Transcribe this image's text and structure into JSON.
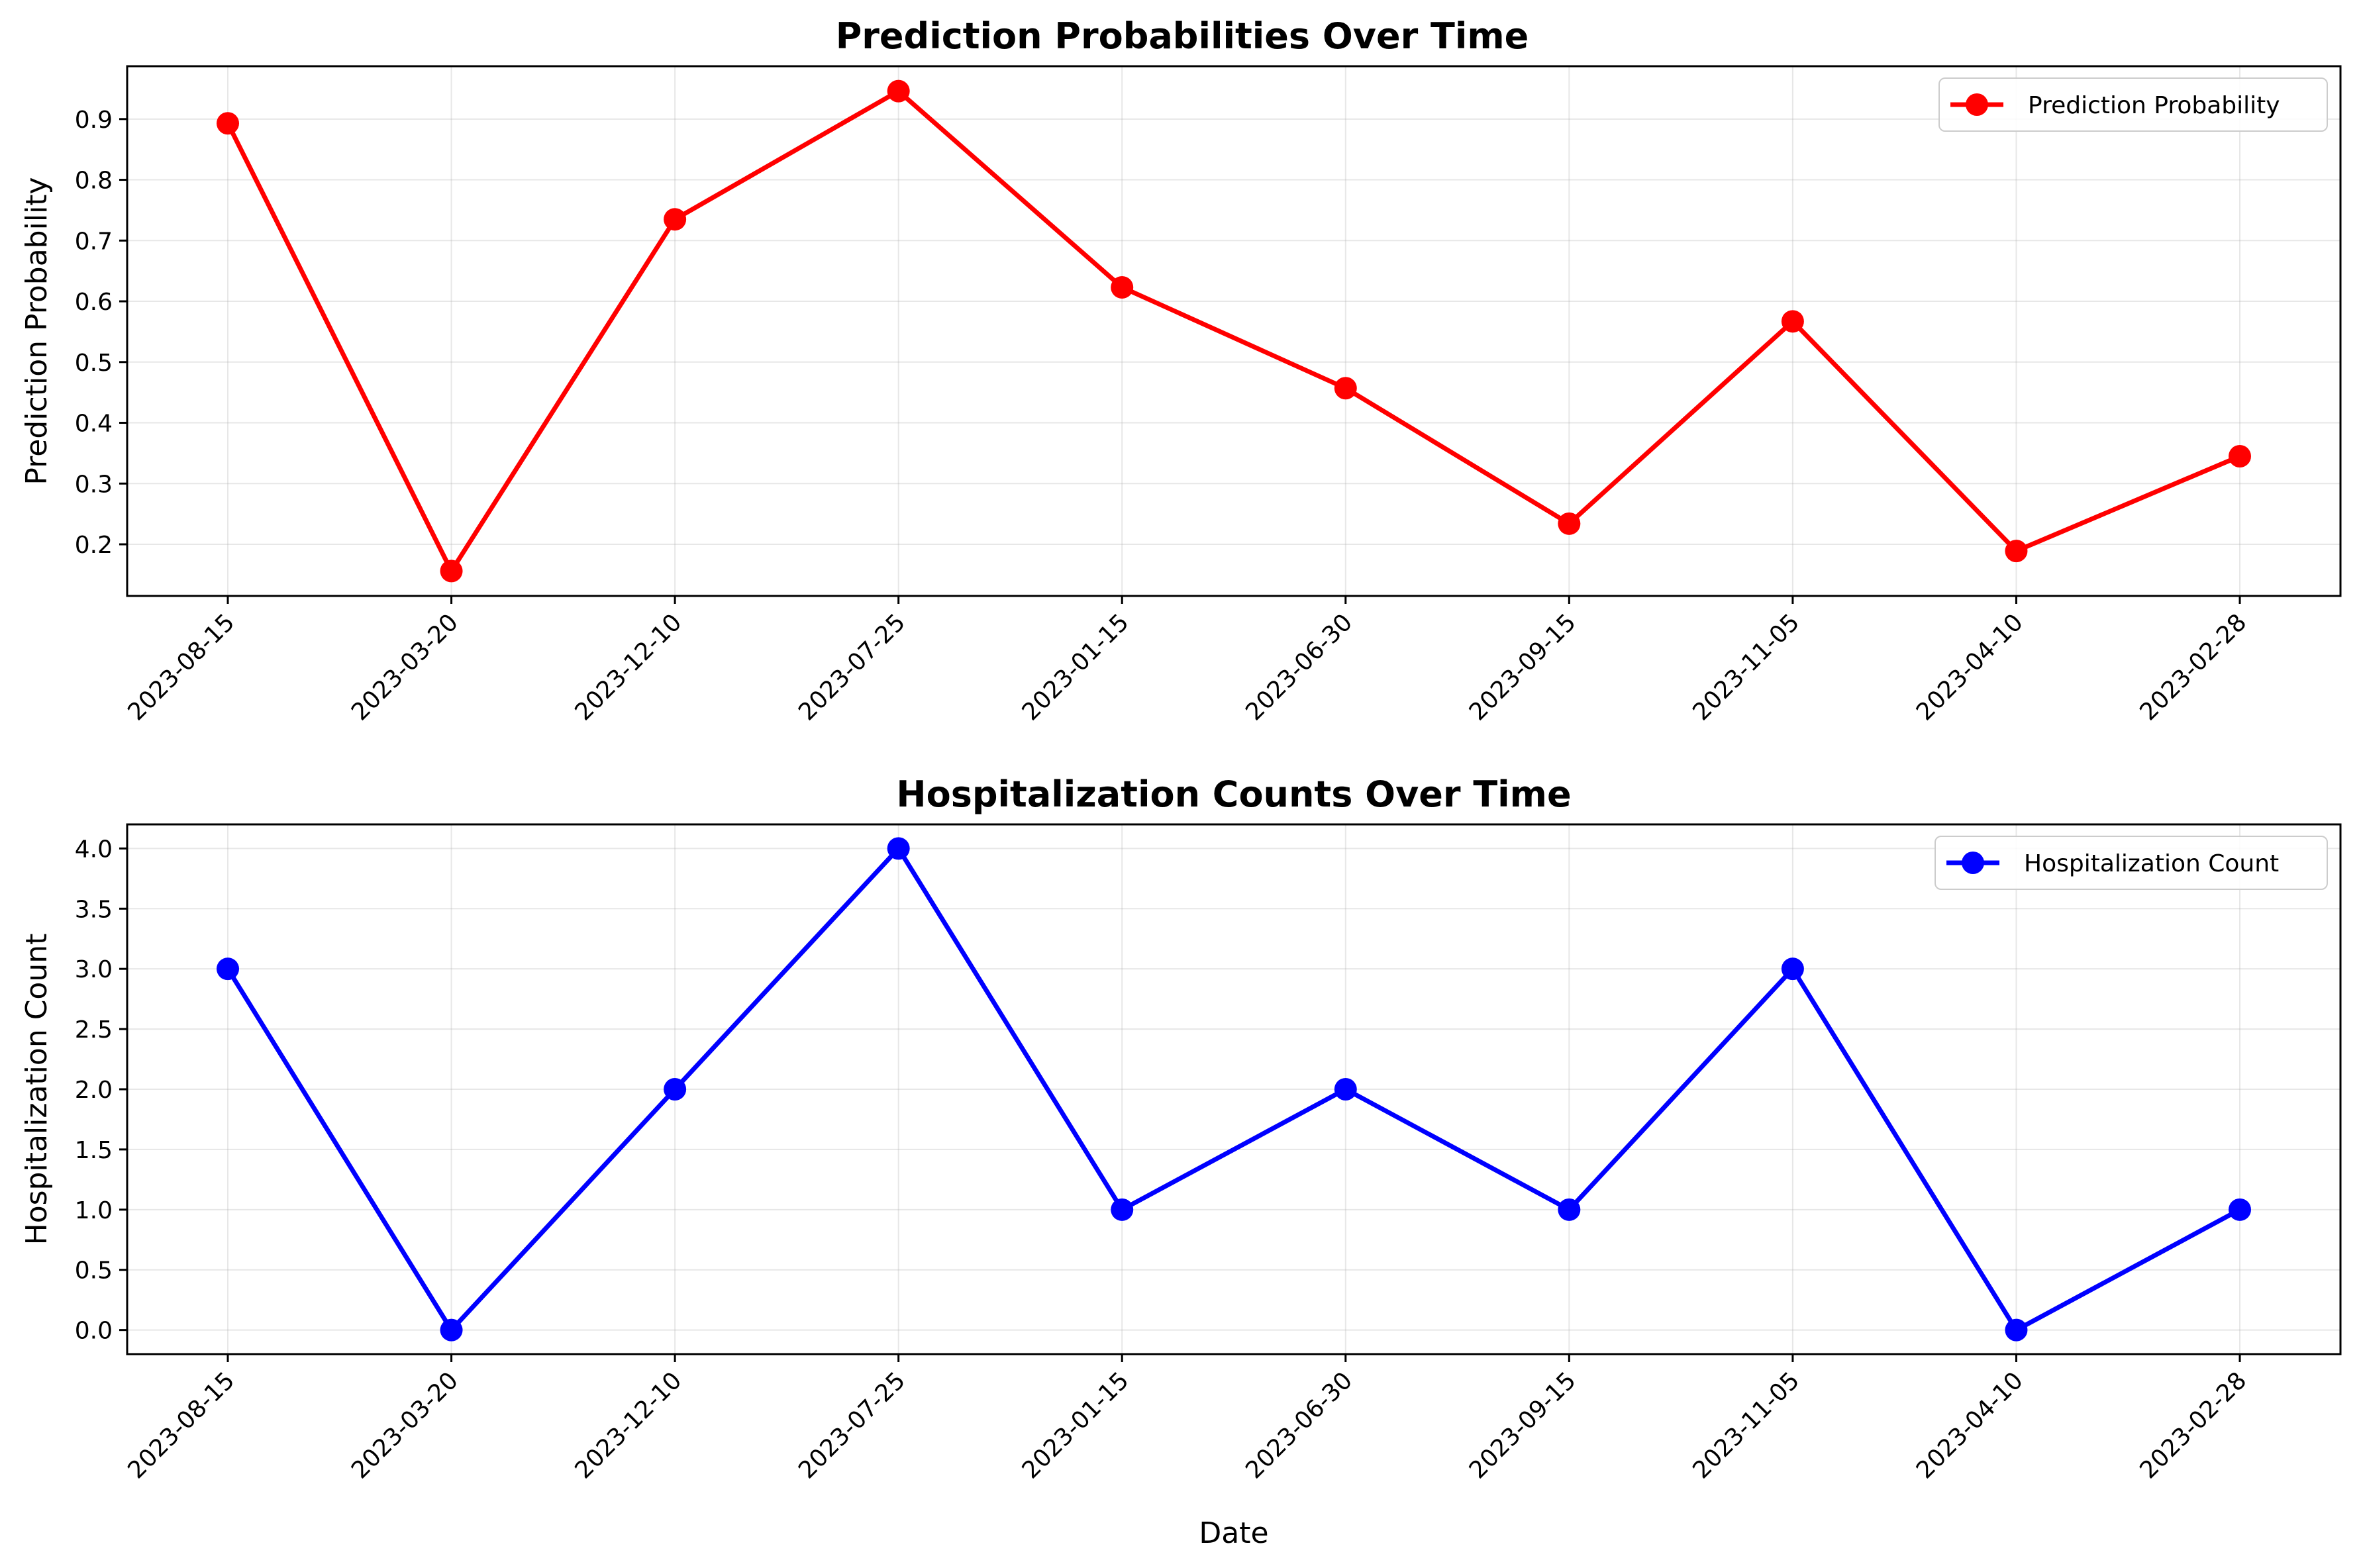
{
  "chart_data": [
    {
      "type": "line",
      "title": "Prediction Probabilities Over Time",
      "xlabel": "",
      "ylabel": "Prediction Probability",
      "categories": [
        "2023-08-15",
        "2023-03-20",
        "2023-12-10",
        "2023-07-25",
        "2023-01-15",
        "2023-06-30",
        "2023-09-15",
        "2023-11-05",
        "2023-04-10",
        "2023-02-28"
      ],
      "series": [
        {
          "name": "Prediction Probability",
          "color": "#ff0000",
          "values": [
            0.893,
            0.156,
            0.735,
            0.946,
            0.623,
            0.457,
            0.234,
            0.567,
            0.189,
            0.345
          ]
        }
      ],
      "ylim": [
        0.115,
        0.987
      ],
      "yticks": [
        0.2,
        0.3,
        0.4,
        0.5,
        0.6,
        0.7,
        0.8,
        0.9
      ],
      "ytick_labels": [
        "0.2",
        "0.3",
        "0.4",
        "0.5",
        "0.6",
        "0.7",
        "0.8",
        "0.9"
      ],
      "grid": true,
      "legend": "top-right"
    },
    {
      "type": "line",
      "title": "Hospitalization Counts Over Time",
      "xlabel": "Date",
      "ylabel": "Hospitalization Count",
      "categories": [
        "2023-08-15",
        "2023-03-20",
        "2023-12-10",
        "2023-07-25",
        "2023-01-15",
        "2023-06-30",
        "2023-09-15",
        "2023-11-05",
        "2023-04-10",
        "2023-02-28"
      ],
      "series": [
        {
          "name": "Hospitalization Count",
          "color": "#0000ff",
          "values": [
            3,
            0,
            2,
            4,
            1,
            2,
            1,
            3,
            0,
            1
          ]
        }
      ],
      "ylim": [
        -0.2,
        4.2
      ],
      "yticks": [
        0,
        0.5,
        1,
        1.5,
        2,
        2.5,
        3,
        3.5,
        4
      ],
      "ytick_labels": [
        "0.0",
        "0.5",
        "1.0",
        "1.5",
        "2.0",
        "2.5",
        "3.0",
        "3.5",
        "4.0"
      ],
      "grid": true,
      "legend": "top-right"
    }
  ]
}
